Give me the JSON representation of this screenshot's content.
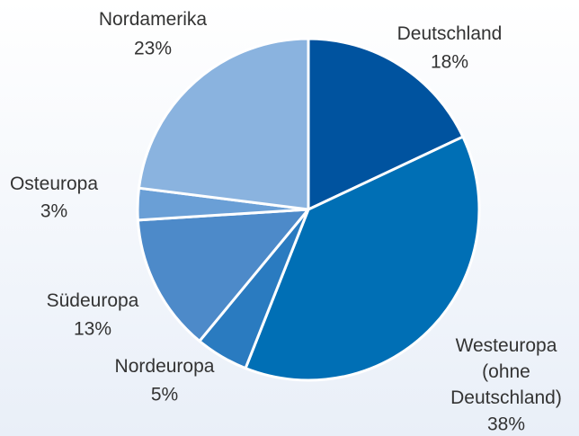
{
  "chart_data": {
    "type": "pie",
    "categories": [
      "Deutschland",
      "Westeuropa\n(ohne\nDeutschland)",
      "Nordeuropa",
      "Südeuropa",
      "Osteuropa",
      "Nordamerika"
    ],
    "values": [
      18,
      38,
      5,
      13,
      3,
      23
    ],
    "value_labels": [
      "18%",
      "38%",
      "5%",
      "13%",
      "3%",
      "23%"
    ],
    "colors": [
      "#00539f",
      "#006fb5",
      "#2a7bc0",
      "#4d8ac9",
      "#6a9fd6",
      "#8ab3df"
    ]
  }
}
